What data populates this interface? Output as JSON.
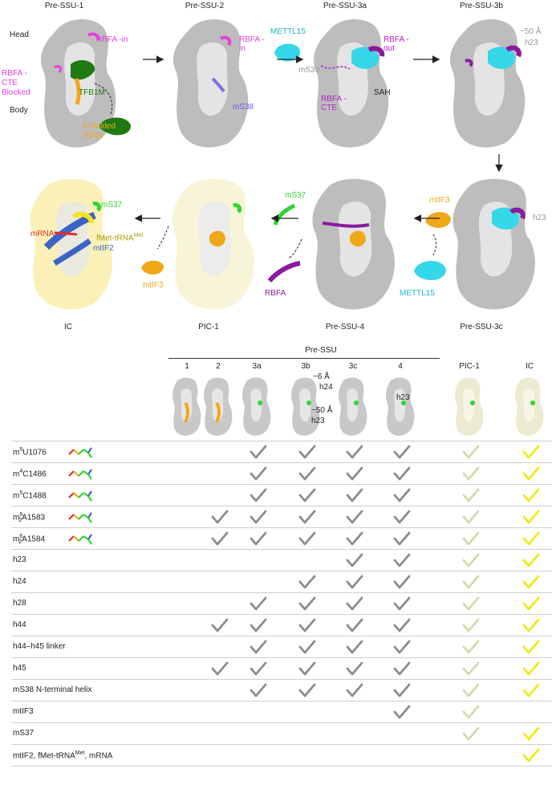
{
  "top_panel": {
    "stages_row1": [
      "Pre-SSU-1",
      "Pre-SSU-2",
      "Pre-SSU-3a",
      "Pre-SSU-3b"
    ],
    "stages_row2": [
      "IC",
      "PIC-1",
      "Pre-SSU-4",
      "Pre-SSU-3c"
    ],
    "annotations": {
      "head": "Head",
      "body": "Body",
      "rbfa_in_1": "RBFA -in",
      "rbfa_in_2": "RBFA -in",
      "rbfa_cte_blocked": "RBFA -CTE Blocked",
      "tfb1m": "TFB1M",
      "unfolded_rrna": "Unfolded rRNA",
      "ms38": "mS38",
      "mettl15_top": "METTL15",
      "rbfa_out": "RBFA -out",
      "ms39": "mS39",
      "rbfa_cte": "RBFA -CTE",
      "sah": "SAH",
      "approx50": "~50 Å",
      "h23_3b": "h23",
      "h23_3c": "h23",
      "mtif3_3c": "mtIF3",
      "mettl15_bottom": "METTL15",
      "ms37_pic": "mS37",
      "rbfa_bottom": "RBFA",
      "ms37_ic": "mS37",
      "mrna": "mRNA",
      "fmet_trna": "fMet-tRNA",
      "fmet_sup": "Met",
      "mtif2": "mtIF2",
      "mtif3_ic": "mtIF3"
    }
  },
  "table": {
    "group_header": "Pre-SSU",
    "columns": [
      "1",
      "2",
      "3a",
      "3b",
      "3c",
      "4",
      "PIC-1",
      "IC"
    ],
    "thumb_annotations": {
      "approx6": "~6 Å",
      "h24": "h24",
      "approx50": "~50 Å",
      "h23": "h23",
      "h23_3c": "h23"
    },
    "check_colors": {
      "gray": "#8c8c8c",
      "pale": "#d6d9a8",
      "yellow": "#f0ea1c"
    },
    "rows": [
      {
        "label_main": "m",
        "label_sup": "5",
        "label_sub": "",
        "label_rest": "U1076",
        "checks": [
          0,
          0,
          1,
          1,
          1,
          1,
          1,
          1
        ]
      },
      {
        "label_main": "m",
        "label_sup": "4",
        "label_sub": "",
        "label_rest": "C1486",
        "checks": [
          0,
          0,
          1,
          1,
          1,
          1,
          1,
          1
        ]
      },
      {
        "label_main": "m",
        "label_sup": "5",
        "label_sub": "",
        "label_rest": "C1488",
        "checks": [
          0,
          0,
          1,
          1,
          1,
          1,
          1,
          1
        ]
      },
      {
        "label_main": "m",
        "label_sup": "6",
        "label_sub": "2",
        "label_rest": "A1583",
        "checks": [
          0,
          1,
          1,
          1,
          1,
          1,
          1,
          1
        ]
      },
      {
        "label_main": "m",
        "label_sup": "6",
        "label_sub": "2",
        "label_rest": "A1584",
        "checks": [
          0,
          1,
          1,
          1,
          1,
          1,
          1,
          1
        ]
      },
      {
        "label_main": "h23",
        "label_sup": "",
        "label_sub": "",
        "label_rest": "",
        "checks": [
          0,
          0,
          0,
          0,
          1,
          1,
          1,
          1
        ]
      },
      {
        "label_main": "h24",
        "label_sup": "",
        "label_sub": "",
        "label_rest": "",
        "checks": [
          0,
          0,
          0,
          1,
          1,
          1,
          1,
          1
        ]
      },
      {
        "label_main": "h28",
        "label_sup": "",
        "label_sub": "",
        "label_rest": "",
        "checks": [
          0,
          0,
          1,
          1,
          1,
          1,
          1,
          1
        ]
      },
      {
        "label_main": "h44",
        "label_sup": "",
        "label_sub": "",
        "label_rest": "",
        "checks": [
          0,
          1,
          1,
          1,
          1,
          1,
          1,
          1
        ]
      },
      {
        "label_main": "h44–h45 linker",
        "label_sup": "",
        "label_sub": "",
        "label_rest": "",
        "checks": [
          0,
          0,
          1,
          1,
          1,
          1,
          1,
          1
        ]
      },
      {
        "label_main": "h45",
        "label_sup": "",
        "label_sub": "",
        "label_rest": "",
        "checks": [
          0,
          1,
          1,
          1,
          1,
          1,
          1,
          1
        ]
      },
      {
        "label_main": "mS38 N-terminal helix",
        "label_sup": "",
        "label_sub": "",
        "label_rest": "",
        "checks": [
          0,
          0,
          1,
          1,
          1,
          1,
          1,
          1
        ]
      },
      {
        "label_main": "mtIF3",
        "label_sup": "",
        "label_sub": "",
        "label_rest": "",
        "checks": [
          0,
          0,
          0,
          0,
          0,
          1,
          1,
          0
        ]
      },
      {
        "label_main": "mS37",
        "label_sup": "",
        "label_sub": "",
        "label_rest": "",
        "checks": [
          0,
          0,
          0,
          0,
          0,
          0,
          1,
          1
        ]
      },
      {
        "label_main": "mtIF2, fMet-tRNA",
        "label_sup": "Met",
        "label_sub": "",
        "label_rest": ", mRNA",
        "checks": [
          0,
          0,
          0,
          0,
          0,
          0,
          0,
          1
        ]
      }
    ]
  }
}
